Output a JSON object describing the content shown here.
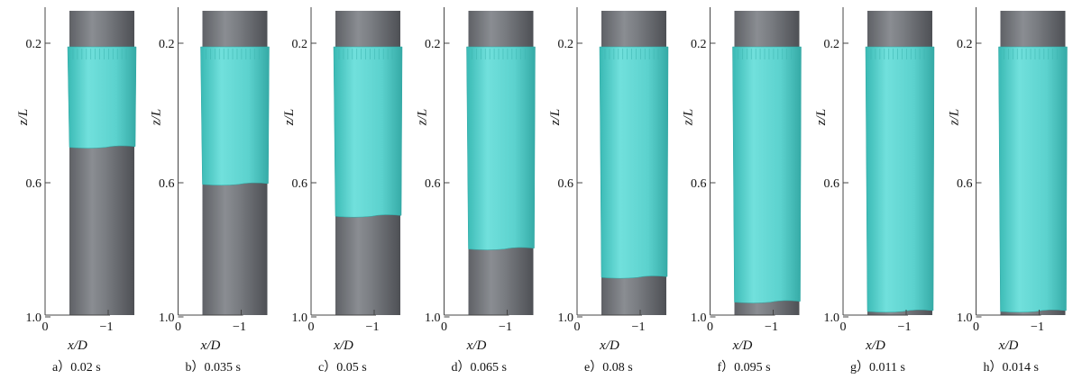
{
  "figure": {
    "yaxis_title": "z/L",
    "xaxis_title": "x/D",
    "yticks": [
      "0.2",
      "0.6",
      "1.0"
    ],
    "xticks": [
      "0",
      "1"
    ],
    "colors": {
      "pipe": "#6e7176",
      "liquid": "#5ed3cf",
      "axis": "#444444"
    },
    "panels": [
      {
        "caption": "a）0.02 s",
        "film_bottom": 0.375
      },
      {
        "caption": "b）0.035 s",
        "film_bottom": 0.513
      },
      {
        "caption": "c）0.05 s",
        "film_bottom": 0.632
      },
      {
        "caption": "d）0.065 s",
        "film_bottom": 0.754
      },
      {
        "caption": "e）0.08 s",
        "film_bottom": 0.86
      },
      {
        "caption": "f）0.095 s",
        "film_bottom": 0.952
      },
      {
        "caption": "g）0.011 s",
        "film_bottom": 1.0
      },
      {
        "caption": "h）0.014 s",
        "film_bottom": 1.0
      }
    ]
  }
}
